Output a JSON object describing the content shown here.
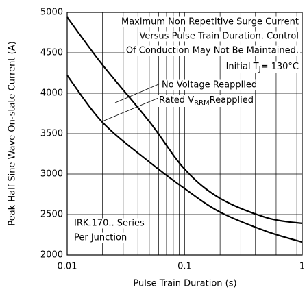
{
  "chart_data": {
    "type": "line",
    "xlabel": "Pulse Train Duration (s)",
    "ylabel": "Peak Half Sine Wave On-state Current (A)",
    "x": [
      0.01,
      0.02,
      0.05,
      0.1,
      0.2,
      0.5,
      1
    ],
    "series": [
      {
        "name": "No Voltage Reapplied",
        "color": "#000000",
        "values": [
          4940,
          4350,
          3650,
          3060,
          2700,
          2460,
          2390
        ]
      },
      {
        "name": "Rated VRRM Reapplied",
        "color": "#000000",
        "values": [
          4220,
          3640,
          3150,
          2820,
          2530,
          2290,
          2160
        ]
      }
    ],
    "xlog": true,
    "xlim": [
      0.01,
      1
    ],
    "xticks": [
      0.01,
      0.1,
      1
    ],
    "xminorticks": [
      0.02,
      0.03,
      0.04,
      0.05,
      0.06,
      0.07,
      0.08,
      0.09,
      0.2,
      0.3,
      0.4,
      0.5,
      0.6,
      0.7,
      0.8,
      0.9
    ],
    "ylim": [
      2000,
      5000
    ],
    "yticks": [
      2000,
      2500,
      3000,
      3500,
      4000,
      4500,
      5000
    ],
    "grid": true,
    "annotations": [
      {
        "text": "Maximum Non Repetitive Surge Current"
      },
      {
        "text": "Versus Pulse Train Duration. Control"
      },
      {
        "text": "Of Conduction May Not Be Maintained."
      },
      {
        "parts": [
          "Initial T",
          "J",
          "= 130°C"
        ]
      },
      {
        "text": "No Voltage Reapplied"
      },
      {
        "parts": [
          "Rated V",
          "RRM",
          "Reapplied"
        ]
      },
      {
        "text": "IRK.170.. Series"
      },
      {
        "text": "Per Junction"
      }
    ]
  }
}
